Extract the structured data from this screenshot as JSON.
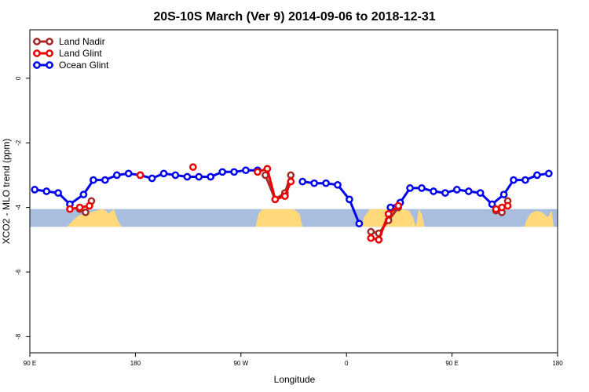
{
  "chart_data": {
    "type": "line",
    "title": "20S-10S March (Ver 9)   2014-09-06 to 2018-12-31",
    "xlabel": "Longitude",
    "ylabel": "XCO2 - MLO trend (ppm)",
    "xlim": [
      -90,
      180
    ],
    "ylim": [
      -8.5,
      1.5
    ],
    "x_ticks": [
      {
        "value": -90,
        "label": "90 E"
      },
      {
        "value": -36,
        "label": "180"
      },
      {
        "value": 18,
        "label": "90 W"
      },
      {
        "value": 72,
        "label": "0"
      },
      {
        "value": 126,
        "label": "90 E"
      },
      {
        "value": 180,
        "label": "180"
      }
    ],
    "y_ticks": [
      0,
      -2,
      -4,
      -6,
      -8
    ],
    "grid": false,
    "legend": {
      "position": "top-left",
      "entries": [
        "Land Nadir",
        "Land Glint",
        "Ocean Glint"
      ]
    },
    "band": {
      "y_range": [
        -4.6,
        -4.05
      ],
      "ocean_color": "#a9bede",
      "land_color": "#ffd97a",
      "land_regions": [
        {
          "x": [
            -71,
            -68,
            -65,
            -62,
            -59,
            -56,
            -53,
            -51,
            -50,
            -47,
            -45,
            -43
          ],
          "top": [
            -4.6,
            -4.4,
            -4.25,
            -4.2,
            -4.15,
            -4.1,
            -4.05,
            -4.1,
            -4.2,
            -4.05,
            -4.4,
            -4.6
          ]
        },
        {
          "x": [
            25.5,
            27,
            29,
            33,
            40,
            45,
            48,
            49.5
          ],
          "top": [
            -4.6,
            -4.2,
            -4.05,
            -4.05,
            -4.05,
            -4.05,
            -4.2,
            -4.6
          ]
        },
        {
          "x": [
            79.5,
            81,
            84,
            90,
            100,
            104,
            106,
            107.5,
            109,
            110.5,
            112
          ],
          "top": [
            -4.6,
            -4.3,
            -4.05,
            -4.05,
            -4.05,
            -4.1,
            -4.3,
            -4.6,
            -4.05,
            -4.2,
            -4.6
          ]
        },
        {
          "x": [
            163,
            164,
            166,
            169,
            172,
            175,
            177,
            178
          ],
          "top": [
            -4.6,
            -4.4,
            -4.2,
            -4.1,
            -4.15,
            -4.3,
            -4.1,
            -4.6
          ]
        }
      ]
    },
    "series": [
      {
        "name": "Ocean Glint",
        "color": "#0000ee",
        "segments": [
          [
            [
              -87.5,
              -3.45
            ],
            [
              -81.5,
              -3.5
            ],
            [
              -75.5,
              -3.55
            ],
            [
              -69.5,
              -3.9
            ],
            [
              -62.5,
              -3.6
            ],
            [
              -57.5,
              -3.15
            ],
            [
              -51.5,
              -3.15
            ],
            [
              -45.5,
              -3.0
            ],
            [
              -39.5,
              -2.95
            ],
            [
              -33.5,
              -3.0
            ],
            [
              -27.5,
              -3.1
            ],
            [
              -21.5,
              -2.95
            ],
            [
              -15.5,
              -3.0
            ],
            [
              -9.5,
              -3.05
            ],
            [
              -3.5,
              -3.05
            ],
            [
              2.5,
              -3.05
            ],
            [
              8.5,
              -2.9
            ],
            [
              14.5,
              -2.9
            ],
            [
              20.5,
              -2.85
            ],
            [
              26.5,
              -2.85
            ]
          ],
          [
            [
              49.5,
              -3.2
            ],
            [
              55.5,
              -3.25
            ],
            [
              61.5,
              -3.25
            ],
            [
              67.5,
              -3.3
            ],
            [
              73.5,
              -3.75
            ],
            [
              78.5,
              -4.5
            ]
          ],
          [
            [
              94.5,
              -4.0
            ],
            [
              99.5,
              -3.85
            ],
            [
              104.5,
              -3.4
            ],
            [
              110.5,
              -3.4
            ],
            [
              116.5,
              -3.5
            ],
            [
              122.5,
              -3.55
            ],
            [
              128.5,
              -3.45
            ],
            [
              134.5,
              -3.5
            ],
            [
              140.5,
              -3.55
            ],
            [
              146.5,
              -3.9
            ],
            [
              152.5,
              -3.6
            ],
            [
              157.5,
              -3.15
            ],
            [
              163.5,
              -3.15
            ],
            [
              169.5,
              -3.0
            ],
            [
              175.5,
              -2.95
            ]
          ]
        ]
      },
      {
        "name": "Land Nadir",
        "color": "#a52a2a",
        "segments": [
          [
            [
              -61.5,
              -4.15
            ],
            [
              -58.5,
              -3.8
            ]
          ],
          [
            [
              -64.5,
              -4.05
            ]
          ],
          [
            [
              30.5,
              -3.0
            ],
            [
              35.5,
              -3.75
            ],
            [
              40.5,
              -3.55
            ],
            [
              43.5,
              -3.0
            ]
          ],
          [
            [
              84.5,
              -4.75
            ],
            [
              88.5,
              -4.8
            ],
            [
              93.5,
              -4.4
            ],
            [
              98.5,
              -4.0
            ]
          ],
          [
            [
              148.5,
              -4.1
            ],
            [
              151.5,
              -4.15
            ],
            [
              154.5,
              -3.8
            ]
          ]
        ]
      },
      {
        "name": "Land Glint",
        "color": "#ee0000",
        "segments": [
          [
            [
              -69.5,
              -4.05
            ],
            [
              -64.5,
              -4.0
            ],
            [
              -59.5,
              -3.95
            ]
          ],
          [
            [
              -33.5,
              -3.0
            ]
          ],
          [
            [
              -6.5,
              -2.75
            ]
          ],
          [
            [
              26.5,
              -2.9
            ],
            [
              31.5,
              -2.8
            ],
            [
              35.5,
              -3.75
            ],
            [
              40.5,
              -3.65
            ],
            [
              43.5,
              -3.2
            ]
          ],
          [
            [
              84.5,
              -4.95
            ],
            [
              88.5,
              -5.0
            ],
            [
              93.5,
              -4.2
            ],
            [
              98.5,
              -3.95
            ]
          ],
          [
            [
              148.5,
              -4.05
            ],
            [
              151.5,
              -4.0
            ],
            [
              154.5,
              -3.95
            ]
          ]
        ]
      }
    ]
  }
}
